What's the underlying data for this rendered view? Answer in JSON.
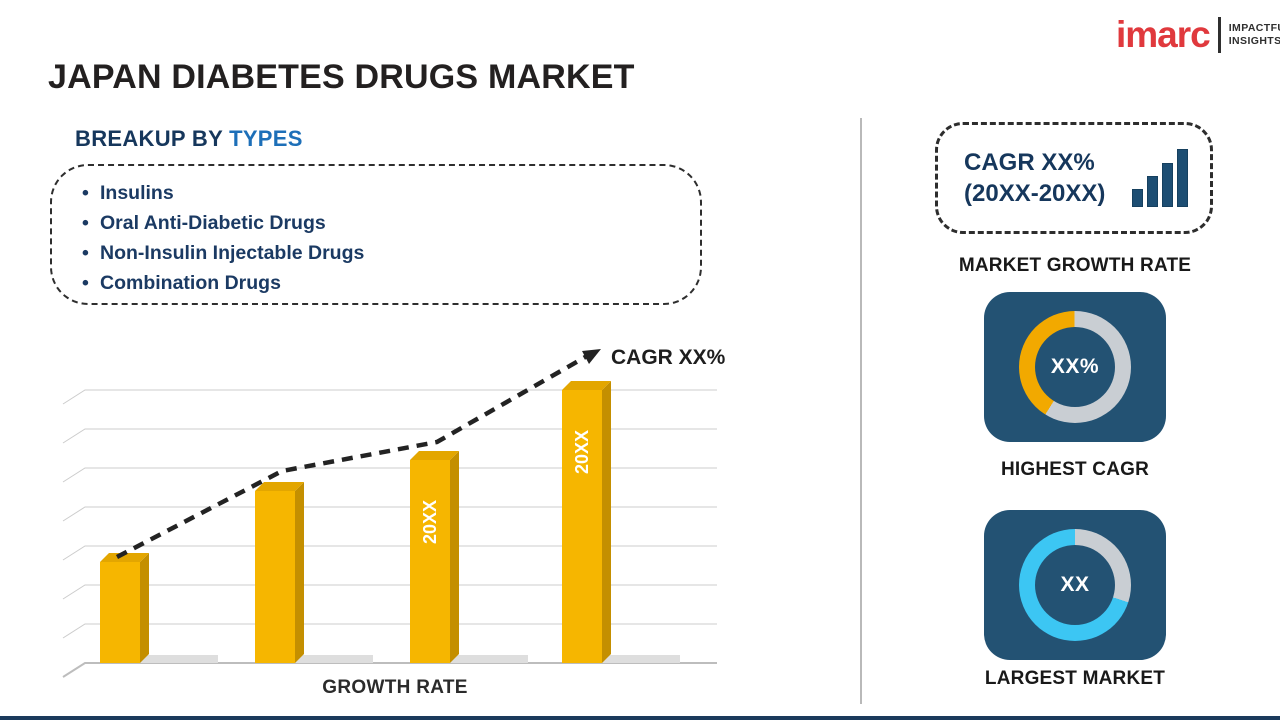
{
  "header": {
    "title": "JAPAN DIABETES DRUGS MARKET"
  },
  "logo": {
    "brand": "imarc",
    "tagline": [
      "IMPACTFUL",
      "INSIGHTS"
    ]
  },
  "breakup": {
    "heading_prefix": "BREAKUP BY",
    "heading_highlight": "TYPES",
    "items": [
      "Insulins",
      "Oral Anti-Diabetic Drugs",
      "Non-Insulin Injectable Drugs",
      "Combination Drugs"
    ]
  },
  "chart_data": {
    "type": "bar",
    "categories": [
      "",
      "",
      "20XX",
      "20XX"
    ],
    "values": [
      2.6,
      4.4,
      5.2,
      7.0
    ],
    "y_axis": {
      "visible_labels": false,
      "gridlines": 7,
      "units_per_gridline": 1
    },
    "trend_annotation": "CAGR XX%",
    "xlabel": "GROWTH RATE",
    "ylabel": "",
    "grid": true,
    "bar_color": "#f6b600",
    "trend_style": "dashed rising arrow"
  },
  "right_panel": {
    "cagr_box": {
      "line1": "CAGR XX%",
      "line2": "(20XX-20XX)",
      "icon": "growth-bars-icon"
    },
    "growth_label": "MARKET GROWTH RATE",
    "highest_cagr": {
      "value": "XX%",
      "label": "HIGHEST CAGR",
      "donut": {
        "accent": "#f2a900",
        "fraction": 0.41,
        "start_deg": 212
      }
    },
    "largest_market": {
      "value": "XX",
      "label": "LARGEST MARKET",
      "donut": {
        "accent": "#3cc6f3",
        "fraction": 0.7,
        "start_deg": 108
      }
    }
  },
  "colors": {
    "brand_red": "#e0393d",
    "navy_text": "#16375c",
    "blue_accent": "#1d6fb8",
    "bar_yellow": "#f6b600",
    "bar_side": "#c48f00",
    "bar_top": "#e3a600",
    "card_bg": "#235273",
    "ring_gray": "#c9ced3",
    "divider_gray": "#b9b9b9",
    "bottom_bar": "#1b3a5c"
  }
}
